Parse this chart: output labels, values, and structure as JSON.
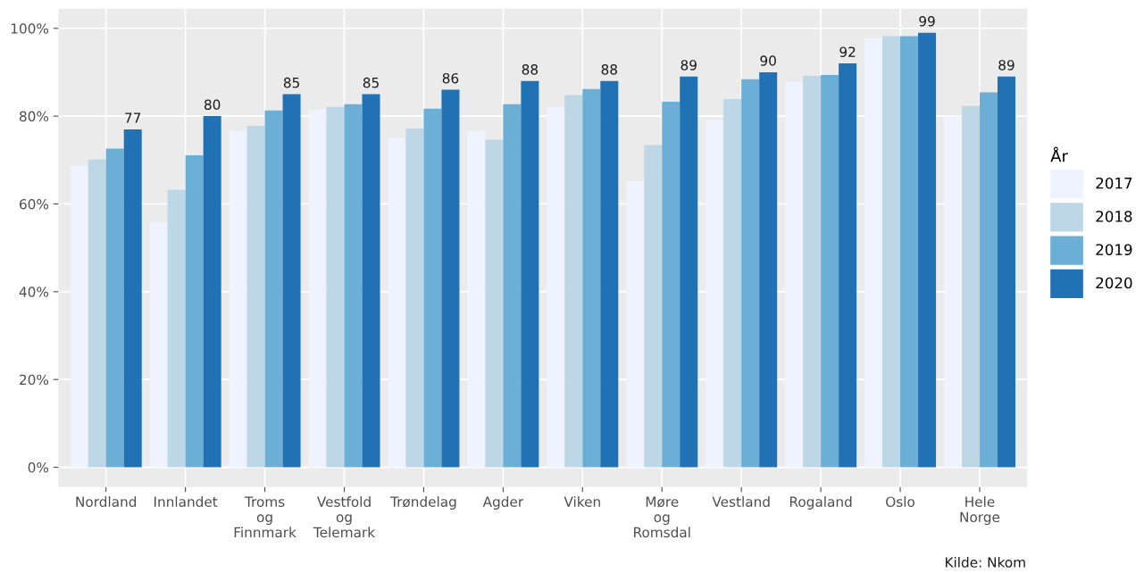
{
  "chart_data": {
    "type": "bar",
    "categories": [
      "Nordland",
      "Innlandet",
      "Troms\nog\nFinnmark",
      "Vestfold\nog\nTelemark",
      "Trøndelag",
      "Agder",
      "Viken",
      "Møre\nog\nRomsdal",
      "Vestland",
      "Rogaland",
      "Oslo",
      "Hele\nNorge"
    ],
    "series": [
      {
        "name": "2017",
        "color": "#eff3ff",
        "values": [
          68.7,
          55.9,
          76.6,
          81.5,
          75.0,
          76.6,
          82.1,
          65.2,
          79.1,
          87.8,
          97.8,
          79.9
        ]
      },
      {
        "name": "2018",
        "color": "#bdd7e7",
        "values": [
          70.1,
          63.2,
          77.8,
          82.1,
          77.2,
          74.6,
          84.8,
          73.4,
          83.9,
          89.2,
          98.2,
          82.3
        ]
      },
      {
        "name": "2019",
        "color": "#6baed6",
        "values": [
          72.6,
          71.1,
          81.3,
          82.7,
          81.7,
          82.7,
          86.2,
          83.3,
          88.4,
          89.4,
          98.2,
          85.4
        ]
      },
      {
        "name": "2020",
        "color": "#2171b5",
        "values": [
          77,
          80,
          85,
          85,
          86,
          88,
          88,
          89,
          90,
          92,
          99,
          89
        ],
        "value_labels": [
          "77",
          "80",
          "85",
          "85",
          "86",
          "88",
          "88",
          "89",
          "90",
          "92",
          "99",
          "89"
        ]
      }
    ],
    "ylim": [
      -4.5,
      104.5
    ],
    "yticks": [
      {
        "value": 0,
        "label": "0%"
      },
      {
        "value": 20,
        "label": "20%"
      },
      {
        "value": 40,
        "label": "40%"
      },
      {
        "value": 60,
        "label": "60%"
      },
      {
        "value": 80,
        "label": "80%"
      },
      {
        "value": 100,
        "label": "100%"
      }
    ],
    "grid": true,
    "legend": "right",
    "legend_title": "År",
    "annotations": [
      "Kilde: Nkom"
    ]
  }
}
